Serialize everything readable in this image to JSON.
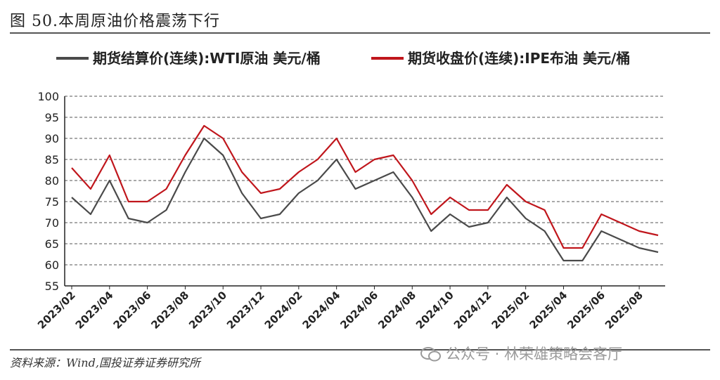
{
  "figure": {
    "title": "图 50.本周原油价格震荡下行",
    "source": "资料来源：Wind,国投证券证券研究所",
    "watermark": "公众号 · 林荣雄策略会客厅"
  },
  "chart_data": {
    "type": "line",
    "title": "",
    "xlabel": "",
    "ylabel": "",
    "ylim": [
      55,
      100
    ],
    "yticks": [
      55,
      60,
      65,
      70,
      75,
      80,
      85,
      90,
      95,
      100
    ],
    "xticks": [
      "2023/02",
      "2023/04",
      "2023/06",
      "2023/08",
      "2023/10",
      "2023/12",
      "2024/02",
      "2024/04",
      "2024/06",
      "2024/08",
      "2024/10",
      "2024/12",
      "2025/02",
      "2025/04",
      "2025/06",
      "2025/08"
    ],
    "grid": "horizontal-dashed",
    "legend_position": "top",
    "x": [
      "2023/02",
      "2023/03",
      "2023/04",
      "2023/05",
      "2023/06",
      "2023/07",
      "2023/08",
      "2023/09",
      "2023/10",
      "2023/11",
      "2023/12",
      "2024/01",
      "2024/02",
      "2024/03",
      "2024/04",
      "2024/05",
      "2024/06",
      "2024/07",
      "2024/08",
      "2024/09",
      "2024/10",
      "2024/11",
      "2024/12",
      "2025/01",
      "2025/02",
      "2025/03",
      "2025/04",
      "2025/05",
      "2025/06",
      "2025/07",
      "2025/08",
      "2025/09"
    ],
    "series": [
      {
        "name": "期货结算价(连续):WTI原油 美元/桶",
        "color": "#4a4a4a",
        "values": [
          76,
          72,
          80,
          71,
          70,
          73,
          82,
          90,
          86,
          77,
          71,
          72,
          77,
          80,
          85,
          78,
          80,
          82,
          76,
          68,
          72,
          69,
          70,
          76,
          71,
          68,
          61,
          61,
          68,
          66,
          64,
          63
        ]
      },
      {
        "name": "期货收盘价(连续):IPE布油 美元/桶",
        "color": "#c0161c",
        "values": [
          83,
          78,
          86,
          75,
          75,
          78,
          86,
          93,
          90,
          82,
          77,
          78,
          82,
          85,
          90,
          82,
          85,
          86,
          80,
          72,
          76,
          73,
          73,
          79,
          75,
          73,
          64,
          64,
          72,
          70,
          68,
          67
        ]
      }
    ]
  }
}
